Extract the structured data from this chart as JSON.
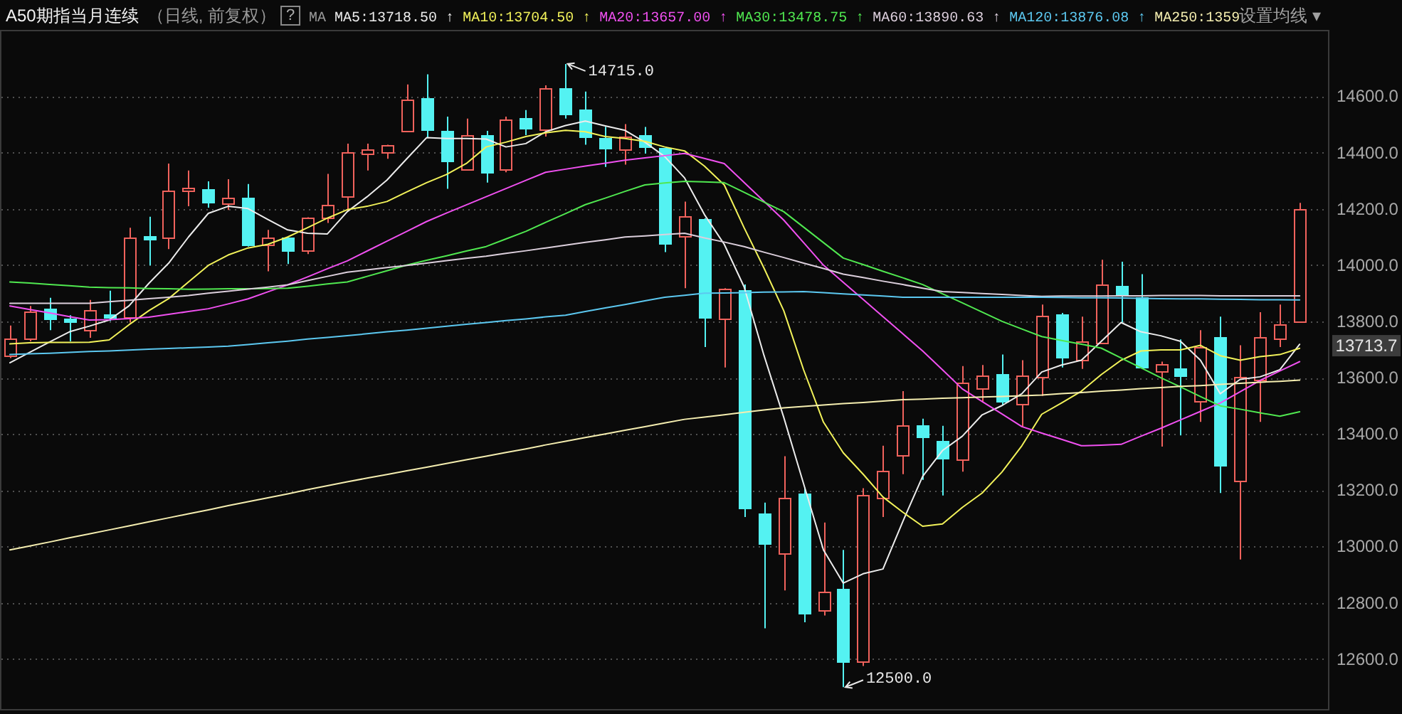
{
  "chart_data": {
    "type": "candlestick",
    "title": "A50期指当月连续",
    "subtitle": "（日线, 前复权）",
    "legend_title": "MA",
    "legend": "top",
    "categories": [
      null,
      null,
      null,
      null,
      null,
      null,
      null,
      null,
      null,
      null,
      null,
      null,
      null,
      null,
      null,
      null,
      null,
      null,
      null,
      null,
      null,
      null,
      null,
      null,
      null,
      null,
      null,
      null,
      null,
      null,
      null,
      null,
      null,
      null,
      null,
      null,
      null,
      null,
      null,
      null,
      null,
      null,
      null,
      null,
      null,
      null,
      null,
      null,
      null,
      null,
      null,
      null,
      null,
      null,
      null,
      null,
      null,
      null,
      null,
      null,
      null,
      null,
      null,
      null,
      null,
      null,
      null
    ],
    "ohlc": [
      [
        13675,
        13785,
        13670,
        13737
      ],
      [
        13737,
        13855,
        13729,
        13833
      ],
      [
        13843,
        13884,
        13769,
        13806
      ],
      [
        13805,
        13822,
        13729,
        13795
      ],
      [
        13768,
        13876,
        13742,
        13838
      ],
      [
        13825,
        13909,
        13801,
        13810
      ],
      [
        13810,
        14133,
        13796,
        14096
      ],
      [
        14100,
        14172,
        13999,
        14089
      ],
      [
        14096,
        14361,
        14057,
        14263
      ],
      [
        14260,
        14336,
        14209,
        14270
      ],
      [
        14265,
        14298,
        14204,
        14221
      ],
      [
        14218,
        14305,
        14196,
        14239
      ],
      [
        14239,
        14288,
        14066,
        14071
      ],
      [
        14069,
        14125,
        13978,
        14096
      ],
      [
        14096,
        14096,
        14004,
        14049
      ],
      [
        14049,
        14170,
        14039,
        14167
      ],
      [
        14167,
        14324,
        14150,
        14213
      ],
      [
        14243,
        14432,
        14192,
        14400
      ],
      [
        14394,
        14432,
        14336,
        14408
      ],
      [
        14400,
        14428,
        14378,
        14423
      ],
      [
        14475,
        14642,
        14475,
        14585
      ],
      [
        14592,
        14678,
        14453,
        14479
      ],
      [
        14475,
        14528,
        14271,
        14369
      ],
      [
        14339,
        14521,
        14339,
        14457
      ],
      [
        14460,
        14477,
        14293,
        14327
      ],
      [
        14336,
        14528,
        14330,
        14516
      ],
      [
        14521,
        14551,
        14462,
        14484
      ],
      [
        14479,
        14639,
        14457,
        14627
      ],
      [
        14627,
        14715,
        14521,
        14533
      ],
      [
        14551,
        14617,
        14428,
        14453
      ],
      [
        14450,
        14492,
        14349,
        14413
      ],
      [
        14408,
        14501,
        14357,
        14453
      ],
      [
        14457,
        14491,
        14396,
        14420
      ],
      [
        14416,
        14416,
        14046,
        14074
      ],
      [
        14103,
        14226,
        13918,
        14170
      ],
      [
        14162,
        14167,
        13709,
        13813
      ],
      [
        13805,
        13918,
        13636,
        13914
      ],
      [
        13909,
        13931,
        13105,
        13136
      ],
      [
        13114,
        13156,
        12709,
        13008
      ],
      [
        12971,
        13321,
        12844,
        13170
      ],
      [
        13186,
        13210,
        12731,
        12760
      ],
      [
        12772,
        13085,
        12755,
        12836
      ],
      [
        12848,
        12988,
        12500,
        12588
      ],
      [
        12588,
        13207,
        12575,
        13181
      ],
      [
        13168,
        13358,
        13105,
        13266
      ],
      [
        13321,
        13552,
        13257,
        13429
      ],
      [
        13426,
        13454,
        13237,
        13389
      ],
      [
        13375,
        13429,
        13181,
        13311
      ],
      [
        13308,
        13641,
        13266,
        13582
      ],
      [
        13560,
        13645,
        13515,
        13606
      ],
      [
        13611,
        13682,
        13501,
        13513
      ],
      [
        13505,
        13662,
        13426,
        13606
      ],
      [
        13599,
        13860,
        13535,
        13817
      ],
      [
        13825,
        13830,
        13636,
        13672
      ],
      [
        13662,
        13817,
        13631,
        13729
      ],
      [
        13721,
        14019,
        13721,
        13930
      ],
      [
        13923,
        14012,
        13796,
        13894
      ],
      [
        13884,
        13968,
        13631,
        13636
      ],
      [
        13618,
        13657,
        13355,
        13645
      ],
      [
        13631,
        13736,
        13395,
        13606
      ],
      [
        13513,
        13769,
        13443,
        13707
      ],
      [
        13742,
        13817,
        13190,
        13287
      ],
      [
        13232,
        13715,
        12954,
        13599
      ],
      [
        13591,
        13833,
        13443,
        13742
      ],
      [
        13737,
        13860,
        13709,
        13788
      ],
      [
        13796,
        14221,
        13796,
        14196
      ],
      null
    ],
    "colors": [
      "#f0625c",
      "#f0625c",
      "#54f2f2",
      "#54f2f2",
      "#f0625c",
      "#54f2f2",
      "#f0625c",
      "#54f2f2",
      "#f0625c",
      "#f0625c",
      "#54f2f2",
      "#f0625c",
      "#54f2f2",
      "#f0625c",
      "#54f2f2",
      "#f0625c",
      "#f0625c",
      "#f0625c",
      "#f0625c",
      "#f0625c",
      "#f0625c",
      "#54f2f2",
      "#54f2f2",
      "#f0625c",
      "#54f2f2",
      "#f0625c",
      "#54f2f2",
      "#f0625c",
      "#54f2f2",
      "#54f2f2",
      "#54f2f2",
      "#f0625c",
      "#54f2f2",
      "#54f2f2",
      "#f0625c",
      "#54f2f2",
      "#f0625c",
      "#54f2f2",
      "#54f2f2",
      "#f0625c",
      "#54f2f2",
      "#f0625c",
      "#54f2f2",
      "#f0625c",
      "#f0625c",
      "#f0625c",
      "#54f2f2",
      "#54f2f2",
      "#f0625c",
      "#f0625c",
      "#54f2f2",
      "#f0625c",
      "#f0625c",
      "#54f2f2",
      "#f0625c",
      "#f0625c",
      "#54f2f2",
      "#54f2f2",
      "#f0625c",
      "#54f2f2",
      "#f0625c",
      "#54f2f2",
      "#f0625c",
      "#f0625c",
      "#f0625c",
      "#f0625c",
      null
    ],
    "series": [
      {
        "type": "line",
        "name": "MA5:13718.50 ↑",
        "color": "#ececec",
        "values": [
          13653,
          13690,
          13727,
          13763,
          13783,
          13805,
          13855,
          13935,
          14007,
          14100,
          14184,
          14209,
          14201,
          14162,
          14125,
          14113,
          14111,
          14190,
          14243,
          14302,
          14378,
          14453,
          14450,
          14450,
          14448,
          14420,
          14432,
          14474,
          14496,
          14512,
          14495,
          14479,
          14437,
          14386,
          14310,
          14180,
          14074,
          13923,
          13680,
          13459,
          13223,
          12988,
          12870,
          12903,
          12920,
          13089,
          13249,
          13341,
          13392,
          13468,
          13501,
          13543,
          13620,
          13645,
          13662,
          13729,
          13796,
          13763,
          13749,
          13729,
          13662,
          13543,
          13594,
          13603,
          13628,
          13718.5,
          null
        ]
      },
      {
        "type": "line",
        "name": "MA10:13704.50 ↑",
        "color": "#f2f25a",
        "values": [
          13720,
          13724,
          13725,
          13725,
          13726,
          13734,
          13788,
          13838,
          13881,
          13940,
          13999,
          14036,
          14061,
          14074,
          14100,
          14133,
          14167,
          14197,
          14209,
          14226,
          14260,
          14293,
          14322,
          14361,
          14420,
          14437,
          14457,
          14470,
          14479,
          14474,
          14457,
          14450,
          14440,
          14420,
          14406,
          14352,
          14285,
          14133,
          13990,
          13838,
          13628,
          13442,
          13333,
          13257,
          13176,
          13122,
          13072,
          13080,
          13139,
          13190,
          13265,
          13358,
          13470,
          13510,
          13552,
          13611,
          13662,
          13695,
          13699,
          13699,
          13715,
          13678,
          13662,
          13675,
          13682,
          13704.5,
          null
        ]
      },
      {
        "type": "line",
        "name": "MA20:13657.00 ↑",
        "color": "#f050f0",
        "values": [
          13855,
          13842,
          13830,
          13817,
          13805,
          13806,
          13810,
          13815,
          13825,
          13835,
          13845,
          13862,
          13880,
          13905,
          13930,
          13958,
          13987,
          14015,
          14050,
          14085,
          14120,
          14155,
          14185,
          14214,
          14243,
          14272,
          14301,
          14330,
          14341,
          14352,
          14362,
          14373,
          14381,
          14389,
          14397,
          14379,
          14361,
          14294,
          14227,
          14160,
          14080,
          14000,
          13939,
          13878,
          13817,
          13756,
          13695,
          13628,
          13560,
          13515,
          13471,
          13426,
          13403,
          13381,
          13358,
          13360,
          13363,
          13392,
          13420,
          13450,
          13480,
          13510,
          13550,
          13590,
          13624,
          13657,
          null
        ]
      },
      {
        "type": "line",
        "name": "MA30:13478.75 ↑",
        "color": "#50e850",
        "values": [
          13940,
          13936,
          13931,
          13927,
          13922,
          13920,
          13919,
          13917,
          13916,
          13914,
          13915,
          13916,
          13916,
          13917,
          13918,
          13925,
          13933,
          13940,
          13960,
          13980,
          14000,
          14017,
          14033,
          14050,
          14066,
          14093,
          14120,
          14152,
          14183,
          14215,
          14238,
          14262,
          14285,
          14292,
          14298,
          14296,
          14293,
          14259,
          14224,
          14190,
          14135,
          14080,
          14025,
          14002,
          13978,
          13955,
          13931,
          13898,
          13866,
          13833,
          13800,
          13773,
          13746,
          13732,
          13719,
          13705,
          13670,
          13635,
          13600,
          13567,
          13533,
          13500,
          13488,
          13475,
          13463,
          13478.75,
          null
        ]
      },
      {
        "type": "line",
        "name": "MA60:13890.63 ↑",
        "color": "#dccfdc",
        "values": [
          13864,
          13864,
          13864,
          13864,
          13864,
          13870,
          13875,
          13881,
          13886,
          13892,
          13900,
          13907,
          13915,
          13922,
          13930,
          13945,
          13960,
          13975,
          13983,
          13991,
          13999,
          14007,
          14016,
          14024,
          14032,
          14042,
          14051,
          14061,
          14071,
          14081,
          14090,
          14100,
          14104,
          14109,
          14113,
          14097,
          14082,
          14066,
          14046,
          14027,
          14007,
          13988,
          13968,
          13956,
          13943,
          13931,
          13918,
          13906,
          13903,
          13899,
          13896,
          13892,
          13889,
          13890,
          13890,
          13890,
          13891,
          13891,
          13892,
          13892,
          13892,
          13891,
          13891,
          13891,
          13891,
          13890.63,
          null
        ]
      },
      {
        "type": "line",
        "name": "MA120:13876.08 ↑",
        "color": "#5cc8f0",
        "values": [
          13682,
          13685,
          13687,
          13690,
          13693,
          13695,
          13698,
          13701,
          13704,
          13706,
          13709,
          13712,
          13718,
          13724,
          13730,
          13737,
          13743,
          13749,
          13756,
          13763,
          13769,
          13776,
          13783,
          13790,
          13796,
          13803,
          13809,
          13816,
          13822,
          13835,
          13848,
          13860,
          13873,
          13886,
          13893,
          13900,
          13901,
          13902,
          13904,
          13905,
          13906,
          13902,
          13898,
          13894,
          13890,
          13886,
          13886,
          13886,
          13886,
          13886,
          13886,
          13886,
          13886,
          13885,
          13884,
          13884,
          13883,
          13882,
          13881,
          13880,
          13880,
          13879,
          13878,
          13877,
          13877,
          13876.08,
          null
        ]
      },
      {
        "type": "line",
        "name": "MA250:1359",
        "color": "#f5eeb0",
        "values": [
          12988,
          13002,
          13016,
          13031,
          13045,
          13059,
          13073,
          13088,
          13102,
          13116,
          13130,
          13145,
          13159,
          13173,
          13187,
          13202,
          13216,
          13230,
          13243,
          13256,
          13269,
          13282,
          13295,
          13308,
          13321,
          13334,
          13347,
          13361,
          13374,
          13387,
          13400,
          13413,
          13426,
          13439,
          13452,
          13460,
          13468,
          13477,
          13485,
          13493,
          13498,
          13503,
          13508,
          13512,
          13517,
          13522,
          13524,
          13527,
          13529,
          13531,
          13533,
          13536,
          13538,
          13543,
          13547,
          13552,
          13556,
          13561,
          13565,
          13569,
          13572,
          13576,
          13580,
          13584,
          13587,
          13591,
          null
        ]
      }
    ],
    "ylim": [
      12430,
      14831
    ],
    "yticks": [
      {
        "value": 12600,
        "label": "12600.0"
      },
      {
        "value": 12800,
        "label": "12800.0"
      },
      {
        "value": 13000,
        "label": "13000.0"
      },
      {
        "value": 13200,
        "label": "13200.0"
      },
      {
        "value": 13400,
        "label": "13400.0"
      },
      {
        "value": 13600,
        "label": "13600.0"
      },
      {
        "value": 13800,
        "label": "13800.0"
      },
      {
        "value": 14000,
        "label": "14000.0"
      },
      {
        "value": 14200,
        "label": "14200.0"
      },
      {
        "value": 14400,
        "label": "14400.0"
      },
      {
        "value": 14600,
        "label": "14600.0"
      }
    ],
    "grid": "y",
    "tick_labels": "y",
    "annotations": [
      "?",
      "设置均线 ▾",
      "14715.0",
      "12500.0",
      "13713.7"
    ]
  }
}
